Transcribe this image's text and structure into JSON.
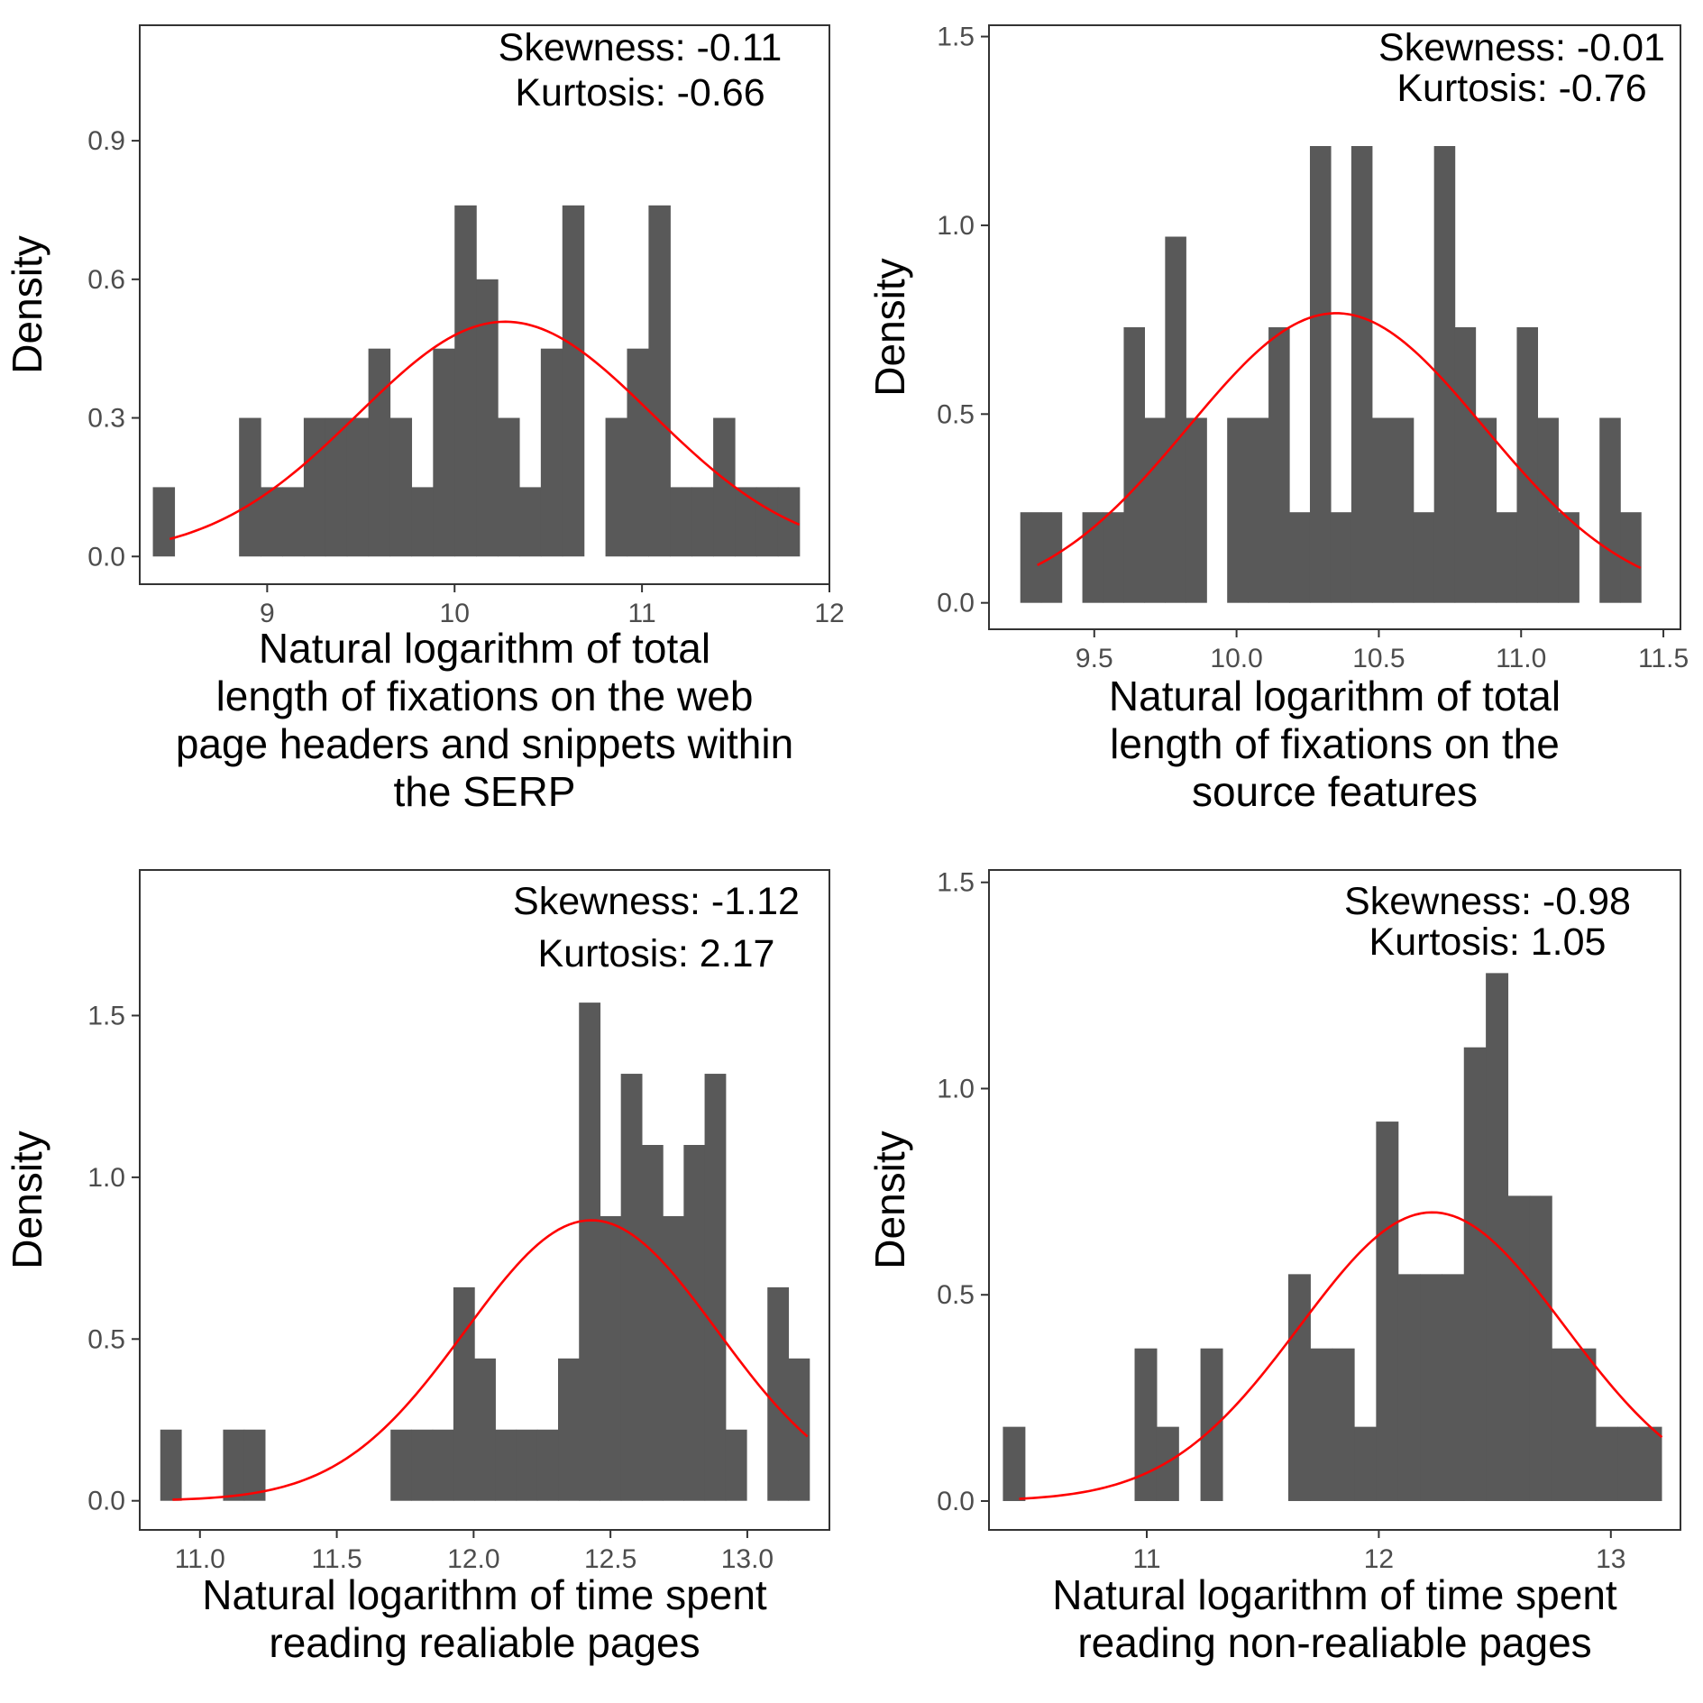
{
  "chart_data": [
    {
      "type": "bar",
      "ylabel": "Density",
      "xlabel_lines": [
        "Natural logarithm of total",
        "length of fixations on the web",
        "page headers and snippets within",
        "the SERP"
      ],
      "annotations": [
        "Skewness: -0.11",
        "Kurtosis: -0.66"
      ],
      "xlim": [
        8.32,
        12.0
      ],
      "ylim": [
        -0.06,
        1.15
      ],
      "x_ticks": [
        9,
        10,
        11,
        12
      ],
      "x_tick_labels": [
        "9",
        "10",
        "11",
        "12"
      ],
      "y_ticks": [
        0.0,
        0.3,
        0.6,
        0.9
      ],
      "y_tick_labels": [
        "0.0",
        "0.3",
        "0.6",
        "0.9"
      ],
      "bin_start": 8.39,
      "bin_width": 0.115,
      "values": [
        0.15,
        0,
        0,
        0,
        0.3,
        0.15,
        0.15,
        0.3,
        0.3,
        0.3,
        0.45,
        0.3,
        0.15,
        0.45,
        0.76,
        0.6,
        0.3,
        0.15,
        0.45,
        0.76,
        0,
        0.3,
        0.45,
        0.76,
        0.15,
        0.15,
        0.3,
        0.15,
        0.15,
        0.15
      ],
      "fit_curve": {
        "distribution": "normal",
        "mean": 10.27,
        "sd": 0.785,
        "x_range": [
          8.48,
          11.84
        ],
        "color": "#ff0000"
      },
      "bar_color": "#595959"
    },
    {
      "type": "bar",
      "ylabel": "Density",
      "xlabel_lines": [
        "Natural logarithm of total",
        "length of fixations on the",
        "source features"
      ],
      "annotations": [
        "Skewness: -0.01",
        "Kurtosis: -0.76"
      ],
      "xlim": [
        9.13,
        11.56
      ],
      "ylim": [
        -0.07,
        1.53
      ],
      "x_ticks": [
        9.5,
        10.0,
        10.5,
        11.0,
        11.5
      ],
      "x_tick_labels": [
        "9.5",
        "10.0",
        "10.5",
        "11.0",
        "11.5"
      ],
      "y_ticks": [
        0.0,
        0.5,
        1.0,
        1.5
      ],
      "y_tick_labels": [
        "0.0",
        "0.5",
        "1.0",
        "1.5"
      ],
      "bin_start": 9.24,
      "bin_width": 0.0727,
      "values": [
        0.24,
        0.24,
        0,
        0.24,
        0.24,
        0.73,
        0.49,
        0.97,
        0.49,
        0,
        0.49,
        0.49,
        0.73,
        0.24,
        1.21,
        0.24,
        1.21,
        0.49,
        0.49,
        0.24,
        1.21,
        0.73,
        0.49,
        0.24,
        0.73,
        0.49,
        0.24,
        0,
        0.49,
        0.24
      ],
      "fit_curve": {
        "distribution": "normal",
        "mean": 10.35,
        "sd": 0.52,
        "x_range": [
          9.3,
          11.42
        ],
        "color": "#ff0000"
      },
      "bar_color": "#595959"
    },
    {
      "type": "bar",
      "ylabel": "Density",
      "xlabel_lines": [
        "Natural logarithm of time spent",
        "reading realiable pages"
      ],
      "annotations": [
        "Skewness: -1.12",
        "Kurtosis: 2.17"
      ],
      "xlim": [
        10.78,
        13.3
      ],
      "ylim": [
        -0.09,
        1.95
      ],
      "x_ticks": [
        11.0,
        11.5,
        12.0,
        12.5,
        13.0
      ],
      "x_tick_labels": [
        "11.0",
        "11.5",
        "12.0",
        "12.5",
        "13.0"
      ],
      "y_ticks": [
        0.0,
        0.5,
        1.0,
        1.5
      ],
      "y_tick_labels": [
        "0.0",
        "0.5",
        "1.0",
        "1.5"
      ],
      "bin_start": 10.855,
      "bin_width": 0.0765,
      "values": [
        0.22,
        0,
        0,
        0.22,
        0.22,
        0,
        0,
        0,
        0,
        0,
        0,
        0.22,
        0.22,
        0.22,
        0.66,
        0.44,
        0.22,
        0.22,
        0.22,
        0.44,
        1.54,
        0.88,
        1.32,
        1.1,
        0.88,
        1.1,
        1.32,
        0.22,
        0,
        0.66,
        0.44
      ],
      "fit_curve": {
        "distribution": "normal",
        "mean": 12.43,
        "sd": 0.46,
        "x_range": [
          10.9,
          13.22
        ],
        "color": "#ff0000"
      },
      "bar_color": "#595959"
    },
    {
      "type": "bar",
      "ylabel": "Density",
      "xlabel_lines": [
        "Natural logarithm of time spent",
        "reading non-realiable pages"
      ],
      "annotations": [
        "Skewness: -0.98",
        "Kurtosis: 1.05"
      ],
      "xlim": [
        10.32,
        13.3
      ],
      "ylim": [
        -0.07,
        1.53
      ],
      "x_ticks": [
        11,
        12,
        13
      ],
      "x_tick_labels": [
        "11",
        "12",
        "13"
      ],
      "y_ticks": [
        0.0,
        0.5,
        1.0,
        1.5
      ],
      "y_tick_labels": [
        "0.0",
        "0.5",
        "1.0",
        "1.5"
      ],
      "bin_start": 10.38,
      "bin_width": 0.0946,
      "values": [
        0.18,
        0,
        0,
        0,
        0,
        0,
        0.37,
        0.18,
        0,
        0.37,
        0,
        0,
        0,
        0.55,
        0.37,
        0.37,
        0.18,
        0.92,
        0.55,
        0.55,
        0.55,
        1.1,
        1.28,
        0.74,
        0.74,
        0.37,
        0.37,
        0.18,
        0.18,
        0.18
      ],
      "fit_curve": {
        "distribution": "normal",
        "mean": 12.23,
        "sd": 0.57,
        "x_range": [
          10.45,
          13.22
        ],
        "color": "#ff0000"
      },
      "bar_color": "#595959"
    }
  ]
}
